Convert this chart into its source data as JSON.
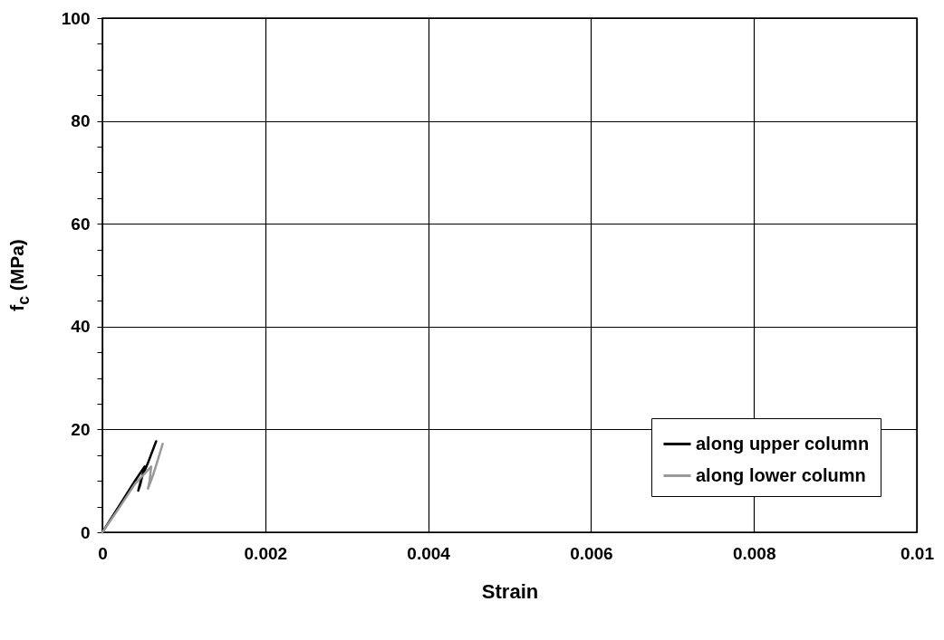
{
  "chart_data": {
    "type": "line",
    "xlabel": "Strain",
    "ylabel": "f$_{c}$ (MPa)",
    "xlim": [
      0,
      0.01
    ],
    "xticks": [
      0,
      0.002,
      0.004,
      0.006,
      0.008,
      0.01
    ],
    "ylim": [
      0,
      100
    ],
    "yticks": [
      0,
      {
        "value": 5,
        "label": null
      },
      {
        "value": 10,
        "label": null
      },
      {
        "value": 15,
        "label": null
      },
      20,
      {
        "value": 25,
        "label": null
      },
      {
        "value": 30,
        "label": null
      },
      {
        "value": 35,
        "label": null
      },
      40,
      {
        "value": 45,
        "label": null
      },
      {
        "value": 50,
        "label": null
      },
      {
        "value": 55,
        "label": null
      },
      60,
      {
        "value": 65,
        "label": null
      },
      {
        "value": 70,
        "label": null
      },
      {
        "value": 75,
        "label": null
      },
      80,
      {
        "value": 85,
        "label": null
      },
      {
        "value": 90,
        "label": null
      },
      {
        "value": 95,
        "label": null
      },
      100
    ],
    "grid": true,
    "legend": "bottom right",
    "series": [
      {
        "name": "along upper column",
        "color": "#000000",
        "x": [
          0,
          0.0002,
          0.0004,
          0.00052,
          0.00046,
          0.00044,
          0.00048,
          0.00056,
          0.00066
        ],
        "values": [
          0,
          5,
          10,
          12.8,
          9,
          8.1,
          10.5,
          13.5,
          17.7
        ]
      },
      {
        "name": "along lower column",
        "color": "#999999",
        "x": [
          0,
          0.0002,
          0.0004,
          0.0006,
          0.00058,
          0.00056,
          0.00062,
          0.00068,
          0.00074
        ],
        "values": [
          0,
          4.6,
          9.4,
          12.8,
          10,
          8.5,
          11,
          14,
          17.2
        ]
      }
    ]
  }
}
